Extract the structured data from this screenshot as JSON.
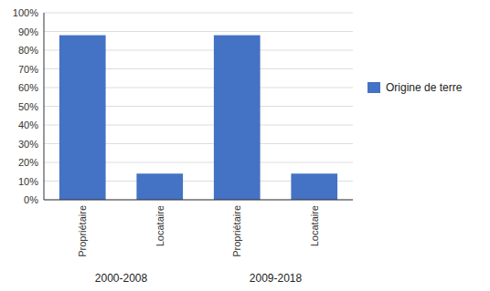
{
  "chart_data": {
    "type": "bar",
    "categories": [
      "Propriétaire",
      "Locataire",
      "Propriétaire",
      "Locataire"
    ],
    "series": [
      {
        "name": "Origine de terre",
        "color": "#4472C4",
        "values": [
          0.88,
          0.14,
          0.88,
          0.14
        ]
      }
    ],
    "ylim": [
      0,
      1.0
    ],
    "yticks": [
      {
        "value": 0.0,
        "label": "0%"
      },
      {
        "value": 0.1,
        "label": "10%"
      },
      {
        "value": 0.2,
        "label": "20%"
      },
      {
        "value": 0.3,
        "label": "30%"
      },
      {
        "value": 0.4,
        "label": "40%"
      },
      {
        "value": 0.5,
        "label": "50%"
      },
      {
        "value": 0.6,
        "label": "60%"
      },
      {
        "value": 0.7,
        "label": "70%"
      },
      {
        "value": 0.8,
        "label": "80%"
      },
      {
        "value": 0.9,
        "label": "90%"
      },
      {
        "value": 1.0,
        "label": "100%"
      }
    ],
    "annotations": [
      "2000-2008",
      "2009-2018"
    ],
    "grid": true,
    "legend": "right"
  }
}
